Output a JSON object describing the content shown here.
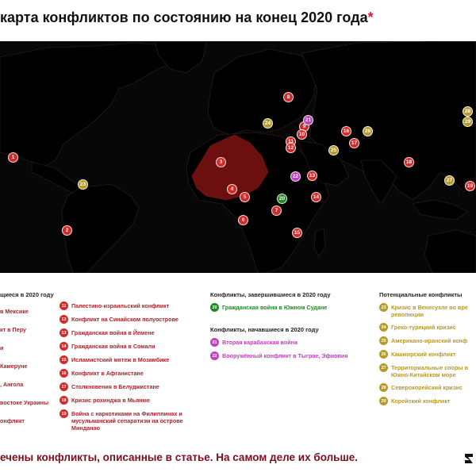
{
  "title": "карта конфликтов по состоянию на конец 2020 года",
  "title_mark": "*",
  "colors": {
    "active": "#d32a2a",
    "ended": "#1f8a1f",
    "started": "#c23fc0",
    "potential": "#b89a2a",
    "highlight": "#6b0f0f"
  },
  "markers": [
    {
      "id": "1",
      "category": "active"
    },
    {
      "id": "2",
      "category": "active"
    },
    {
      "id": "3",
      "category": "active"
    },
    {
      "id": "4",
      "category": "active"
    },
    {
      "id": "5",
      "category": "active"
    },
    {
      "id": "6",
      "category": "active"
    },
    {
      "id": "7",
      "category": "active"
    },
    {
      "id": "8",
      "category": "active"
    },
    {
      "id": "9",
      "category": "active"
    },
    {
      "id": "10",
      "category": "active"
    },
    {
      "id": "11",
      "category": "active"
    },
    {
      "id": "12",
      "category": "active"
    },
    {
      "id": "13",
      "category": "active"
    },
    {
      "id": "14",
      "category": "active"
    },
    {
      "id": "15",
      "category": "active"
    },
    {
      "id": "16",
      "category": "active"
    },
    {
      "id": "17",
      "category": "active"
    },
    {
      "id": "18",
      "category": "active"
    },
    {
      "id": "19",
      "category": "active"
    },
    {
      "id": "20",
      "category": "ended"
    },
    {
      "id": "21",
      "category": "started"
    },
    {
      "id": "22",
      "category": "started"
    },
    {
      "id": "23",
      "category": "potential"
    },
    {
      "id": "24",
      "category": "potential"
    },
    {
      "id": "25",
      "category": "potential"
    },
    {
      "id": "26",
      "category": "potential"
    },
    {
      "id": "27",
      "category": "potential"
    },
    {
      "id": "28",
      "category": "potential"
    },
    {
      "id": "29",
      "category": "potential"
    }
  ],
  "legend": {
    "active_heading": "щиеся в 2020 году",
    "active_left": [
      {
        "text": "в Мексике"
      },
      {
        "text": "кт в Перу"
      },
      {
        "text": "и"
      },
      {
        "text": "Камеруне"
      },
      {
        "text": ", Ангола"
      },
      {
        "text": "востоке Украины"
      },
      {
        "text": "онфликт"
      }
    ],
    "active_right": [
      {
        "id": "11",
        "text": "Палестино-израильский конфликт"
      },
      {
        "id": "12",
        "text": "Конфликт на Синайском полуострове"
      },
      {
        "id": "13",
        "text": "Гражданская война в Йемене"
      },
      {
        "id": "14",
        "text": "Гражданская война в Сомали"
      },
      {
        "id": "15",
        "text": "Исламистский мятеж в Мозамбике"
      },
      {
        "id": "16",
        "text": "Конфликт в Афганистане"
      },
      {
        "id": "17",
        "text": "Столкновения в Белуджистане"
      },
      {
        "id": "18",
        "text": "Кризис рохинджа в Мьянме"
      },
      {
        "id": "19",
        "text": "Война с наркотиками на Филиппинах и мусульманский сепаратизм на острове Минданао"
      }
    ],
    "ended_heading": "Конфликты, завершившиеся в 2020 году",
    "ended": [
      {
        "id": "20",
        "text": "Гражданская война в Южном Судане"
      }
    ],
    "started_heading": "Конфликты, начавшиеся в 2020 году",
    "started": [
      {
        "id": "21",
        "text": "Вторая карабахская война"
      },
      {
        "id": "22",
        "text": "Вооружённый конфликт в Тыграе, Эфиопия"
      }
    ],
    "potential_heading": "Потенциальные конфликты",
    "potential": [
      {
        "id": "23",
        "text": "Кризис в Венесуэле во вре революции"
      },
      {
        "id": "24",
        "text": "Греко-турецкий кризис"
      },
      {
        "id": "25",
        "text": "Американо-иранский конф"
      },
      {
        "id": "26",
        "text": "Кашмирский конфликт"
      },
      {
        "id": "27",
        "text": "Территориальные споры в Южно-Китайском море"
      },
      {
        "id": "28",
        "text": "Северокорейский кризис"
      },
      {
        "id": "29",
        "text": "Корейский конфликт"
      }
    ]
  },
  "footnote": "ечены конфликты, описанные в статье. На самом деле их больше."
}
